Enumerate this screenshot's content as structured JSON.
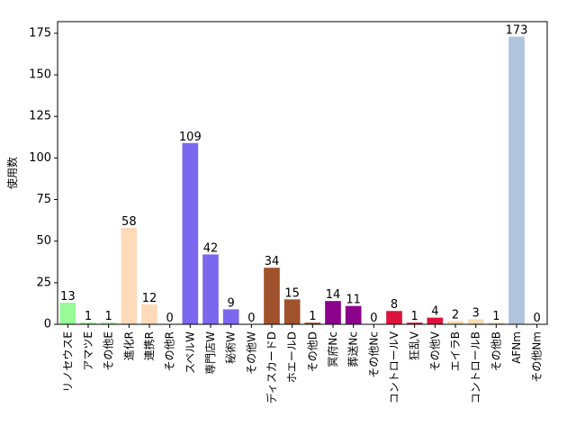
{
  "chart_data": {
    "type": "bar",
    "ylabel": "使用数",
    "ylim": [
      0,
      182
    ],
    "yticks": [
      0,
      25,
      50,
      75,
      100,
      125,
      150,
      175
    ],
    "grid": false,
    "categories": [
      "リノセウスE",
      "アマツE",
      "その他E",
      "進化R",
      "連携R",
      "その他R",
      "スペルW",
      "専門店W",
      "秘術W",
      "その他W",
      "ディスカードD",
      "ホエールD",
      "その他D",
      "冥府Nc",
      "葬送Nc",
      "その他Nc",
      "コントロールV",
      "狂乱V",
      "その他V",
      "エイラB",
      "コントロールB",
      "その他B",
      "AFNm",
      "その他Nm"
    ],
    "values": [
      13,
      1,
      1,
      58,
      12,
      0,
      109,
      42,
      9,
      0,
      34,
      15,
      1,
      14,
      11,
      0,
      8,
      1,
      4,
      2,
      3,
      1,
      173,
      0
    ],
    "colors": [
      "#98fb98",
      "#98fb98",
      "#98fb98",
      "#ffdab9",
      "#ffdab9",
      "#ffdab9",
      "#7b68ee",
      "#7b68ee",
      "#7b68ee",
      "#7b68ee",
      "#a0522d",
      "#a0522d",
      "#a0522d",
      "#8b008b",
      "#8b008b",
      "#8b008b",
      "#dc143c",
      "#dc143c",
      "#dc143c",
      "#f5deb3",
      "#f5deb3",
      "#f5deb3",
      "#b0c4de",
      "#b0c4de"
    ]
  }
}
